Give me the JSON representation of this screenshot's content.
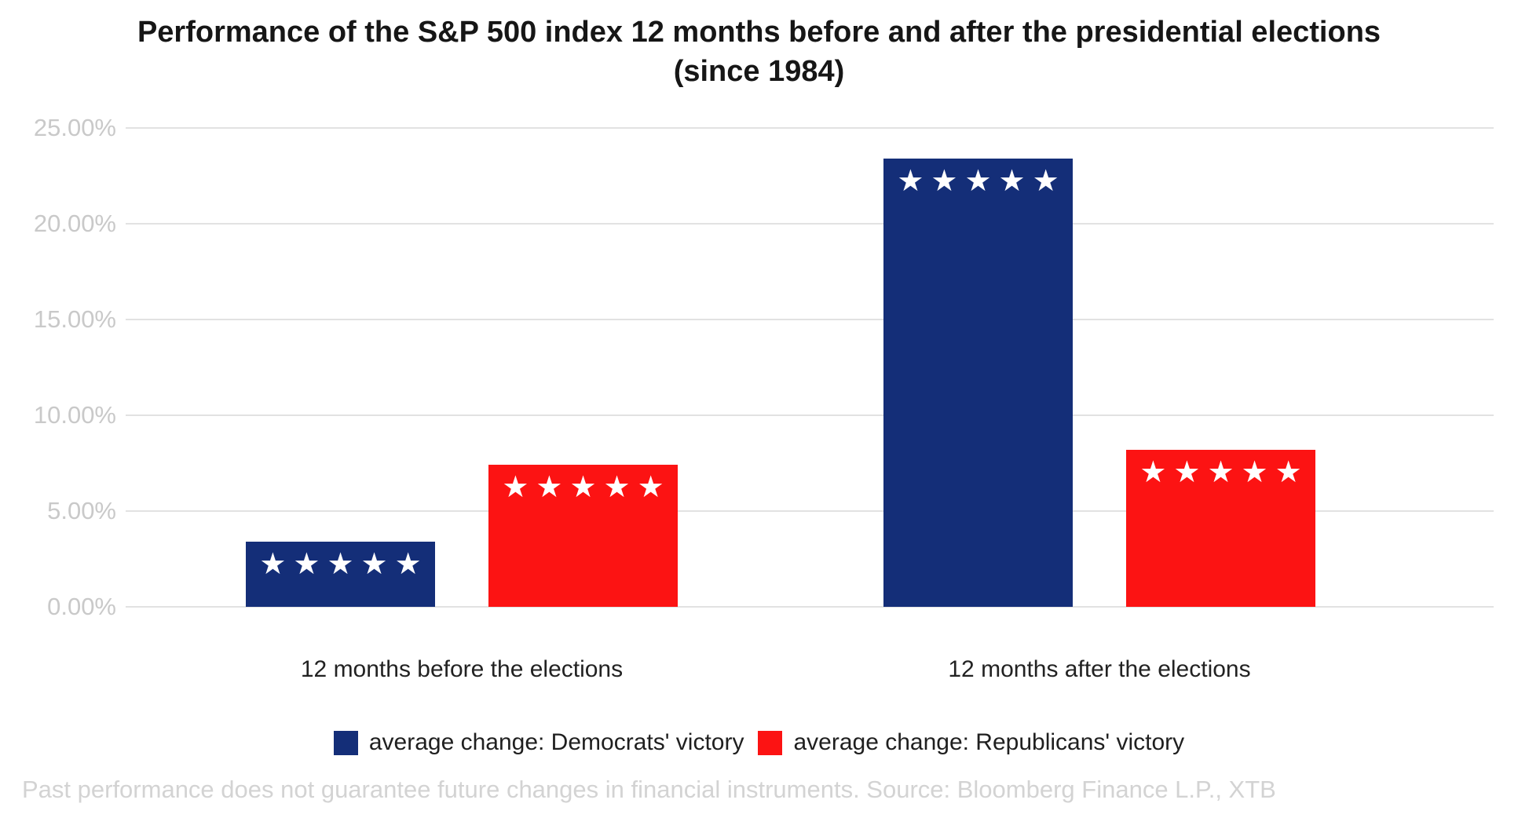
{
  "page": {
    "title_line1": "Performance of the S&P 500 index 12 months before and after the presidential elections",
    "title_line2": "(since 1984)",
    "footer": "Past performance does not guarantee future changes in financial instruments. Source: Bloomberg Finance L.P., XTB"
  },
  "chart_data": {
    "type": "bar",
    "title": "Performance of the S&P 500 index 12 months before and after the presidential elections (since 1984)",
    "categories": [
      "12 months before the elections",
      "12 months after the elections"
    ],
    "series": [
      {
        "name": "average change: Democrats' victory",
        "color": "#142e78",
        "values": [
          3.4,
          23.4
        ]
      },
      {
        "name": "average change: Republicans' victory",
        "color": "#fc1313",
        "values": [
          7.4,
          8.2
        ]
      }
    ],
    "unit": "%",
    "ylim": [
      0,
      25
    ],
    "yticks": [
      {
        "value": 0,
        "label": "0.00%"
      },
      {
        "value": 5,
        "label": "5.00%"
      },
      {
        "value": 10,
        "label": "10.00%"
      },
      {
        "value": 15,
        "label": "15.00%"
      },
      {
        "value": 20,
        "label": "20.00%"
      },
      {
        "value": 25,
        "label": "25.00%"
      }
    ],
    "grid": "horizontal",
    "legend_position": "bottom",
    "bar_decoration": {
      "glyph": "★",
      "count": 5,
      "color": "#ffffff"
    }
  }
}
